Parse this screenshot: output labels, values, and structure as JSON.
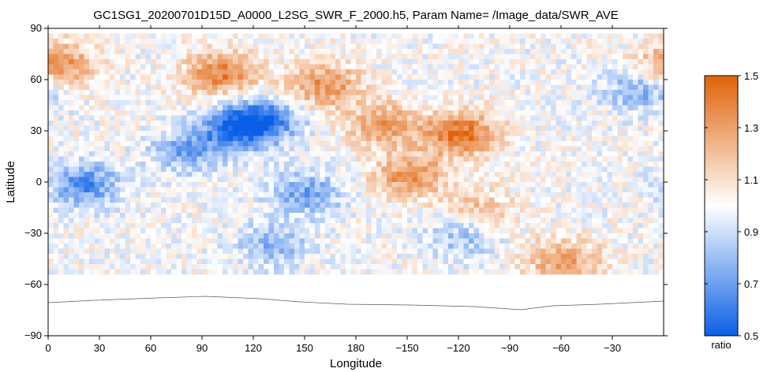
{
  "chart_data": {
    "type": "heatmap",
    "title": "GC1SG1_20200701D15D_A0000_L2SG_SWR_F_2000.h5, Param Name= /Image_data/SWR_AVE",
    "xlabel": "Longitude",
    "ylabel": "Latitude",
    "x_ticks": [
      "0",
      "30",
      "60",
      "90",
      "120",
      "150",
      "180",
      "−150",
      "−120",
      "−90",
      "−60",
      "−30"
    ],
    "y_ticks": [
      "90",
      "60",
      "30",
      "0",
      "−30",
      "−60",
      "−90"
    ],
    "xlim": [
      0,
      360
    ],
    "ylim": [
      -90,
      90
    ],
    "data_lat_range": [
      -52,
      87
    ],
    "colorbar": {
      "label": "ratio",
      "range": [
        0.5,
        1.5
      ],
      "ticks": [
        "1.5",
        "1.3",
        "1.1",
        "0.9",
        "0.7",
        "0.5"
      ],
      "colors": [
        "#0a5fe6",
        "#ffffff",
        "#e0620a"
      ]
    },
    "regions": [
      {
        "lon": 110,
        "lat": 33,
        "value": 0.6
      },
      {
        "lon": 125,
        "lat": 38,
        "value": 0.65
      },
      {
        "lon": 80,
        "lat": 20,
        "value": 0.72
      },
      {
        "lon": 100,
        "lat": 65,
        "value": 1.4
      },
      {
        "lon": 160,
        "lat": 58,
        "value": 1.35
      },
      {
        "lon": 195,
        "lat": 35,
        "value": 1.3
      },
      {
        "lon": 240,
        "lat": 30,
        "value": 1.45
      },
      {
        "lon": 210,
        "lat": 5,
        "value": 1.35
      },
      {
        "lon": 20,
        "lat": 0,
        "value": 0.65
      },
      {
        "lon": 150,
        "lat": -5,
        "value": 0.72
      },
      {
        "lon": 130,
        "lat": -35,
        "value": 0.78
      },
      {
        "lon": 240,
        "lat": -30,
        "value": 0.8
      },
      {
        "lon": 300,
        "lat": -45,
        "value": 1.3
      },
      {
        "lon": 250,
        "lat": -15,
        "value": 1.2
      },
      {
        "lon": 345,
        "lat": 55,
        "value": 0.75
      },
      {
        "lon": 5,
        "lat": 70,
        "value": 1.35
      }
    ]
  }
}
